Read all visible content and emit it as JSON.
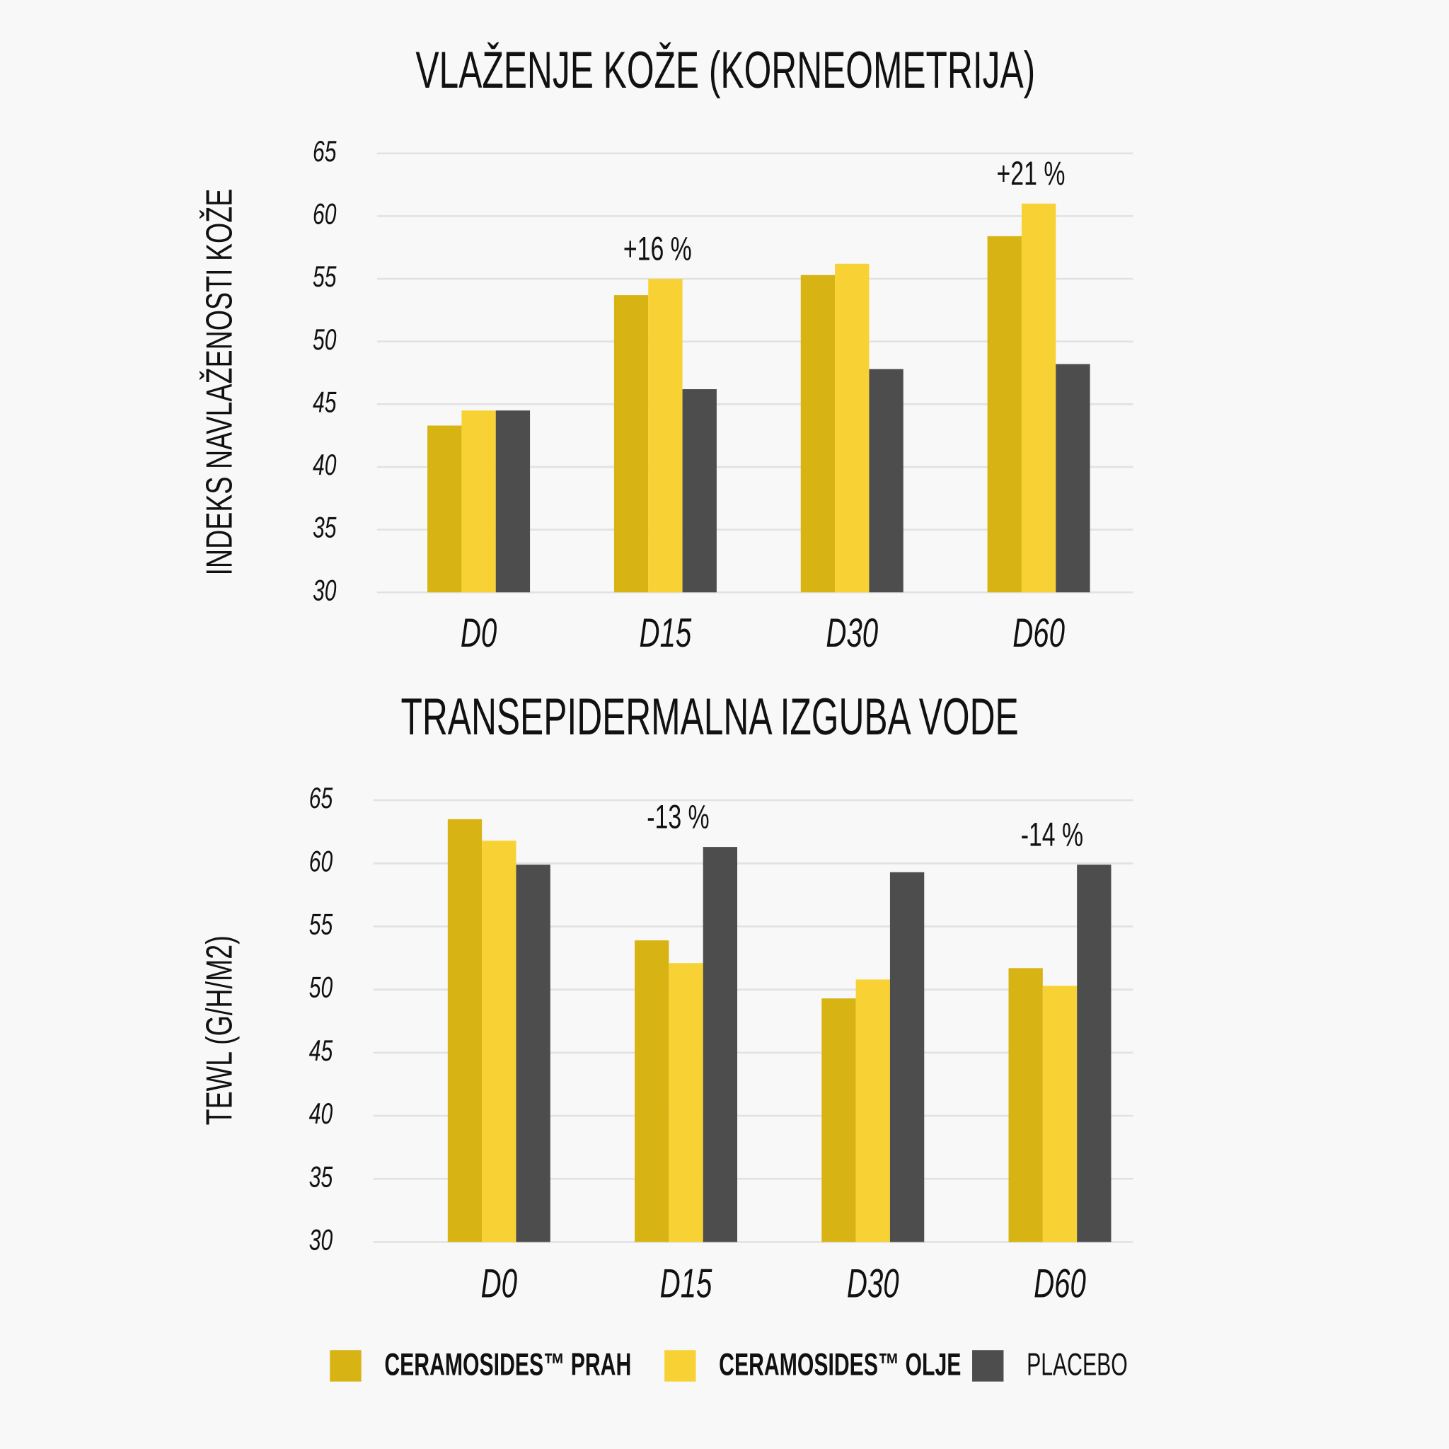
{
  "chart_data": [
    {
      "type": "bar",
      "title": "VLAŽENJE KOŽE (KORNEOMETRIJA)",
      "y_label": "INDEKS NAVLAŽENOSTI KOŽE",
      "categories": [
        "D0",
        "D15",
        "D30",
        "D60"
      ],
      "series": [
        {
          "color": "#d8b314",
          "values": [
            43.3,
            53.7,
            55.3,
            58.4
          ]
        },
        {
          "color": "#f8d234",
          "values": [
            44.5,
            55.0,
            56.2,
            61.0
          ]
        },
        {
          "color": "#4d4d4d",
          "values": [
            44.5,
            46.2,
            47.8,
            48.2
          ]
        }
      ],
      "annotations": [
        null,
        "+16 %",
        null,
        "+21 %"
      ],
      "ylim": [
        30,
        65
      ],
      "yticks": [
        30,
        35,
        40,
        45,
        50,
        55,
        60,
        65
      ],
      "grid": true
    },
    {
      "type": "bar",
      "title": "TRANSEPIDERMALNA IZGUBA VODE",
      "y_label": "TEWL (G/H/M2)",
      "categories": [
        "D0",
        "D15",
        "D30",
        "D60"
      ],
      "series": [
        {
          "name": "CERAMOSIDES™ PRAH",
          "color": "#d8b314",
          "values": [
            63.5,
            53.9,
            49.3,
            51.7
          ]
        },
        {
          "name": "CERAMOSIDES™ OLJE",
          "color": "#f8d234",
          "values": [
            61.8,
            52.1,
            50.8,
            50.3
          ]
        },
        {
          "name": "PLACEBO",
          "color": "#4d4d4d",
          "values": [
            59.9,
            61.3,
            59.3,
            59.9
          ]
        }
      ],
      "annotations": [
        null,
        "-13 %",
        null,
        "-14 %"
      ],
      "ylim": [
        30,
        65
      ],
      "yticks": [
        30,
        35,
        40,
        45,
        50,
        55,
        60,
        65
      ],
      "grid": true,
      "legend": "bottom"
    }
  ]
}
